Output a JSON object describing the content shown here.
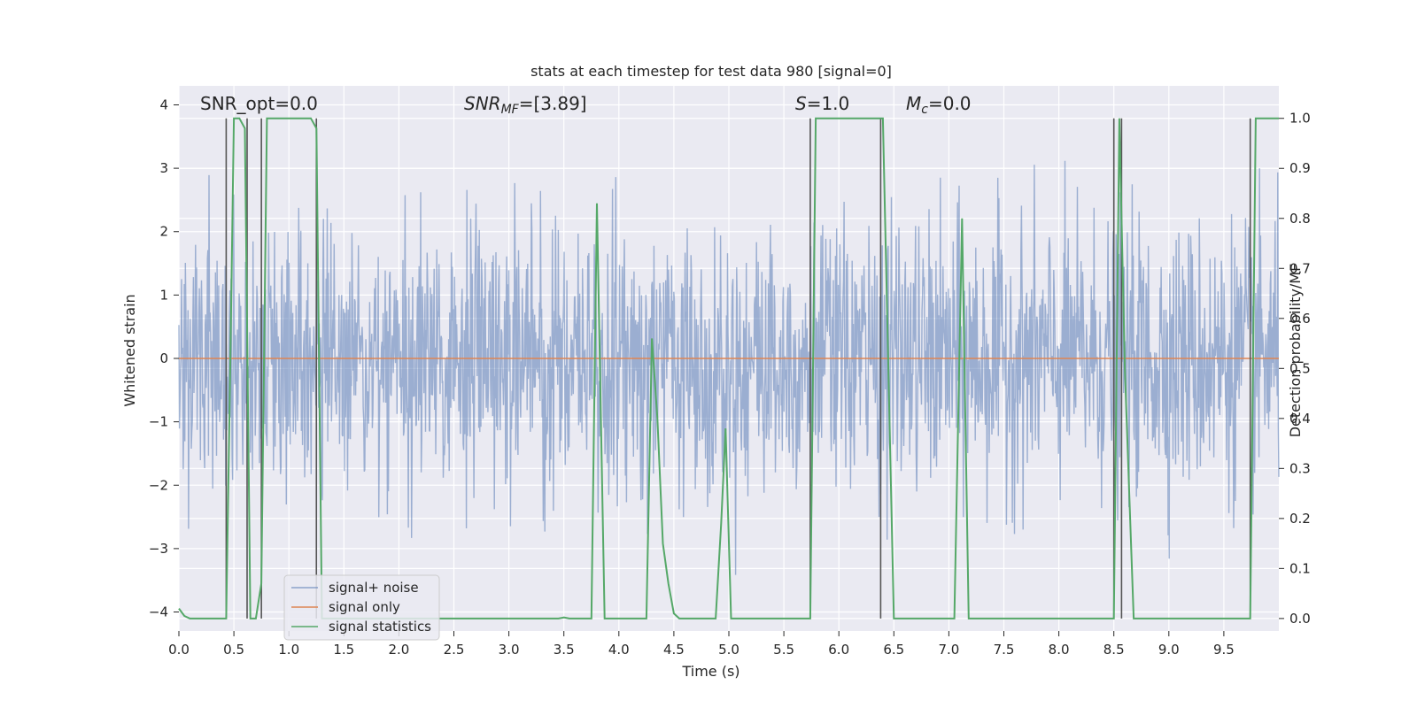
{
  "chart_data": {
    "type": "line",
    "title": "stats at each timestep for test data 980 [signal=0]",
    "xlabel": "Time (s)",
    "ylabel": "Whitened strain",
    "y2label": "Detection probability/MF",
    "xlim": [
      0,
      10
    ],
    "ylim": [
      -4.3,
      4.3
    ],
    "y2lim": [
      -0.025,
      1.065
    ],
    "xticks": [
      0.0,
      0.5,
      1.0,
      1.5,
      2.0,
      2.5,
      3.0,
      3.5,
      4.0,
      4.5,
      5.0,
      5.5,
      6.0,
      6.5,
      7.0,
      7.5,
      8.0,
      8.5,
      9.0,
      9.5
    ],
    "xtick_labels": [
      "0.0",
      "0.5",
      "1.0",
      "1.5",
      "2.0",
      "2.5",
      "3.0",
      "3.5",
      "4.0",
      "4.5",
      "5.0",
      "5.5",
      "6.0",
      "6.5",
      "7.0",
      "7.5",
      "8.0",
      "8.5",
      "9.0",
      "9.5"
    ],
    "yticks": [
      -4,
      -3,
      -2,
      -1,
      0,
      1,
      2,
      3,
      4
    ],
    "ytick_labels": [
      "−4",
      "−3",
      "−2",
      "−1",
      "0",
      "1",
      "2",
      "3",
      "4"
    ],
    "y2ticks": [
      0.0,
      0.1,
      0.2,
      0.3,
      0.4,
      0.5,
      0.6,
      0.7,
      0.8,
      0.9,
      1.0
    ],
    "y2tick_labels": [
      "0.0",
      "0.1",
      "0.2",
      "0.3",
      "0.4",
      "0.5",
      "0.6",
      "0.7",
      "0.8",
      "0.9",
      "1.0"
    ],
    "grid": true,
    "legend_position": "lower-left",
    "annotations": {
      "snr_opt": "SNR_opt=0.0",
      "snr_mf_base": "SNR",
      "snr_mf_sub": "MF",
      "snr_mf_value": "=[3.89]",
      "s_base": "S",
      "s_value": "=1.0",
      "mc_base": "M",
      "mc_sub": "c",
      "mc_value": "=0.0"
    },
    "series": [
      {
        "name": "signal+ noise",
        "color": "#4c72b0",
        "axis": "left",
        "kind": "dense-noise",
        "amplitude_std": 1.0,
        "sample_count": 2048,
        "range": [
          -3.6,
          3.6
        ]
      },
      {
        "name": "signal only",
        "color": "#dd8452",
        "axis": "left",
        "x": [
          0,
          10
        ],
        "y": [
          0,
          0
        ]
      },
      {
        "name": "signal statistics",
        "color": "#55a868",
        "axis": "right",
        "x": [
          0.0,
          0.05,
          0.1,
          0.42,
          0.43,
          0.47,
          0.5,
          0.55,
          0.6,
          0.65,
          0.7,
          0.75,
          0.8,
          0.85,
          1.2,
          1.25,
          1.3,
          3.45,
          3.5,
          3.55,
          3.75,
          3.8,
          3.87,
          4.25,
          4.3,
          4.35,
          4.4,
          4.45,
          4.5,
          4.55,
          4.88,
          4.93,
          4.97,
          5.02,
          5.74,
          5.79,
          5.85,
          6.35,
          6.4,
          6.5,
          7.05,
          7.12,
          7.18,
          8.5,
          8.55,
          8.6,
          8.68,
          9.74,
          9.79,
          9.85,
          10.0
        ],
        "y": [
          0.02,
          0.005,
          0.0,
          0.0,
          0.0,
          0.55,
          1.0,
          1.0,
          0.98,
          0.0,
          0.0,
          0.07,
          1.0,
          1.0,
          1.0,
          0.98,
          0.0,
          0.0,
          0.002,
          0.0,
          0.0,
          0.83,
          0.0,
          0.0,
          0.56,
          0.4,
          0.15,
          0.07,
          0.01,
          0.0,
          0.0,
          0.19,
          0.38,
          0.0,
          0.0,
          1.0,
          1.0,
          1.0,
          1.0,
          0.0,
          0.0,
          0.8,
          0.0,
          0.0,
          1.0,
          0.5,
          0.0,
          0.0,
          1.0,
          1.0,
          1.0
        ]
      },
      {
        "name": "vertical markers",
        "color": "#555555",
        "axis": "right",
        "kind": "vlines",
        "x": [
          0.43,
          0.62,
          0.75,
          1.25,
          5.74,
          6.38,
          8.5,
          8.57,
          9.74
        ],
        "ymin": 0.0,
        "ymax": 1.0
      }
    ]
  }
}
